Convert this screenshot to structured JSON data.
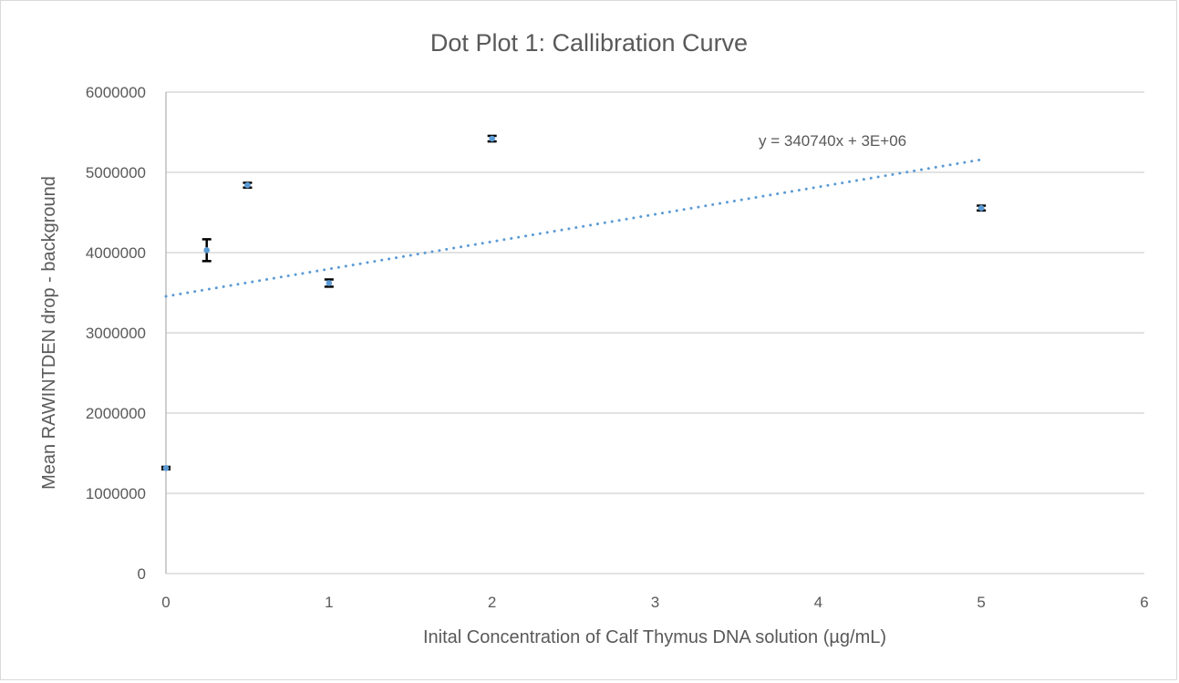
{
  "chart_data": {
    "type": "scatter",
    "title": "Dot Plot 1: Callibration Curve",
    "xlabel": "Inital Concentration of Calf Thymus DNA solution (µg/mL)",
    "ylabel": "Mean RAWINTDEN drop - background",
    "xlim": [
      0,
      6
    ],
    "ylim": [
      0,
      6000000
    ],
    "xticks": [
      "0",
      "1",
      "2",
      "3",
      "4",
      "5",
      "6"
    ],
    "yticks": [
      "0",
      "1000000",
      "2000000",
      "3000000",
      "4000000",
      "5000000",
      "6000000"
    ],
    "grid": true,
    "points": [
      {
        "x": 0,
        "y": 1315000,
        "err": 15000
      },
      {
        "x": 0.25,
        "y": 4030000,
        "err": 136000
      },
      {
        "x": 0.5,
        "y": 4840000,
        "err": 30000
      },
      {
        "x": 1,
        "y": 3620000,
        "err": 45000
      },
      {
        "x": 2,
        "y": 5420000,
        "err": 35000
      },
      {
        "x": 5,
        "y": 4555000,
        "err": 30000
      }
    ],
    "trendline": {
      "type": "linear",
      "slope": 340740,
      "intercept": 3455000,
      "x_range": [
        0,
        5
      ],
      "equation": "y = 340740x + 3E+06"
    },
    "colors": {
      "marker": "#5b9bd5",
      "trend": "#5b9bd5",
      "error_bar": "#000000",
      "grid": "#d9d9d9",
      "text": "#595959"
    }
  }
}
